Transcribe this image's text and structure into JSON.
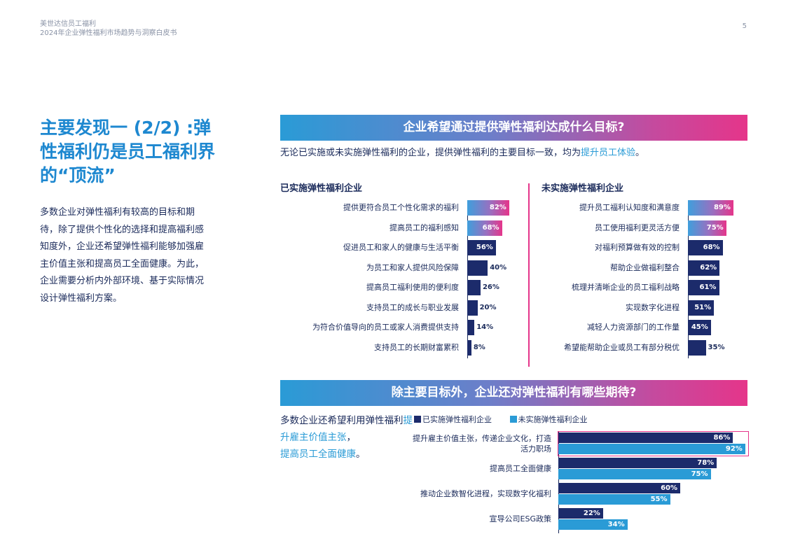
{
  "header": {
    "brand": "美世达信员工福利",
    "doc_title": "2024年企业弹性福利市场趋势与洞察白皮书",
    "page_number": "5"
  },
  "finding": {
    "title": "主要发现一 (2/2) :弹性福利仍是员工福利界的“顶流”",
    "body": "多数企业对弹性福利有较高的目标和期待，除了提供个性化的选择和提高福利感知度外，企业还希望弹性福利能够加强雇主价值主张和提高员工全面健康。为此，企业需要分析内外部环境、基于实际情况设计弹性福利方案。"
  },
  "section1": {
    "banner": "企业希望通过提供弹性福利达成什么目标?",
    "subtitle_pre": "无论已实施或未实施弹性福利的企业，提供弹性福利的主要目标一致，均为",
    "subtitle_hl": "提升员工体验",
    "subtitle_post": "。"
  },
  "section2": {
    "banner": "除主要目标外，企业还对弹性福利有哪些期待?",
    "text_pre": "多数企业还希望利用弹性福利",
    "text_hl1": "提升雇主价值主张",
    "text_mid": "，",
    "text_hl2": "提高员工全面健康",
    "text_post": "。"
  },
  "chart_data": [
    {
      "type": "bar",
      "orientation": "horizontal",
      "title": "已实施弹性福利企业",
      "categories": [
        "提供更符合员工个性化需求的福利",
        "提高员工的福利感知",
        "促进员工和家人的健康与生活平衡",
        "为员工和家人提供风险保障",
        "提高员工福利使用的便利度",
        "支持员工的成长与职业发展",
        "为符合价值导向的员工或家人消费提供支持",
        "支持员工的长期财富累积"
      ],
      "values": [
        82,
        68,
        56,
        40,
        26,
        20,
        14,
        8
      ],
      "labels": [
        "82%",
        "68%",
        "56%",
        "40%",
        "26%",
        "20%",
        "14%",
        "8%"
      ],
      "unit": "%",
      "highlight_count": 2,
      "colors": {
        "highlight": "#e5358a",
        "base": "#1c2b6b"
      }
    },
    {
      "type": "bar",
      "orientation": "horizontal",
      "title": "未实施弹性福利企业",
      "categories": [
        "提升员工福利认知度和满意度",
        "员工使用福利更灵活方便",
        "对福利预算做有效的控制",
        "帮助企业做福利整合",
        "梳理并清晰企业的员工福利战略",
        "实现数字化进程",
        "减轻人力资源部门的工作量",
        "希望能帮助企业或员工有部分税优"
      ],
      "values": [
        89,
        75,
        68,
        62,
        61,
        51,
        45,
        35
      ],
      "labels": [
        "89%",
        "75%",
        "68%",
        "62%",
        "61%",
        "51%",
        "45%",
        "35%"
      ],
      "unit": "%",
      "highlight_count": 2,
      "colors": {
        "highlight": "#e5358a",
        "base": "#1c2b6b"
      }
    },
    {
      "type": "bar",
      "orientation": "horizontal",
      "categories": [
        "提升雇主价值主张，传递企业文化，打造活力职场",
        "提高员工全面健康",
        "推动企业数智化进程，实现数字化福利",
        "宣导公司ESG政策"
      ],
      "series": [
        {
          "name": "已实施弹性福利企业",
          "values": [
            86,
            78,
            60,
            22
          ],
          "labels": [
            "86%",
            "78%",
            "60%",
            "22%"
          ],
          "color": "#1c2b6b"
        },
        {
          "name": "未实施弹性福利企业",
          "values": [
            92,
            75,
            55,
            34
          ],
          "labels": [
            "92%",
            "75%",
            "55%",
            "34%"
          ],
          "color": "#2a9bd6"
        }
      ],
      "unit": "%",
      "legend": "top",
      "highlighted_category": 0
    }
  ]
}
